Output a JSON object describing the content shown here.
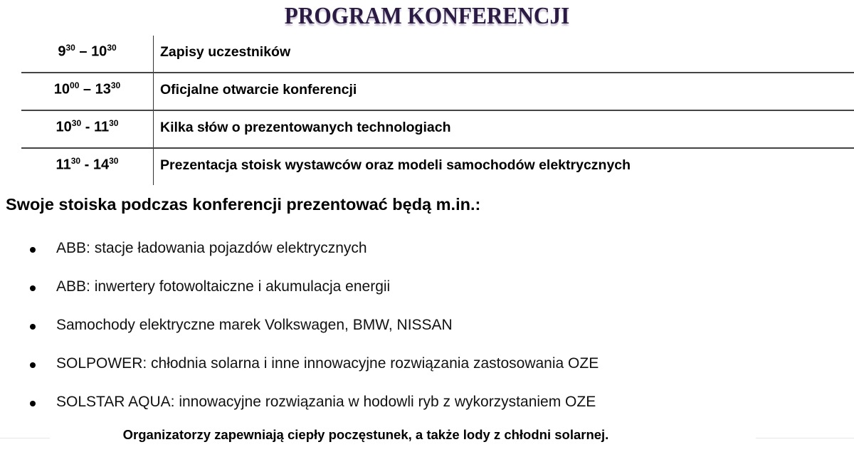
{
  "title": "PROGRAM KONFERENCJI",
  "schedule": [
    {
      "start_hour": "9",
      "start_min": "30",
      "sep": " – ",
      "end_hour": "10",
      "end_min": "30",
      "label": "Zapisy uczestników"
    },
    {
      "start_hour": "10",
      "start_min": "00",
      "sep": " – ",
      "end_hour": "13",
      "end_min": "30",
      "label": "Oficjalne otwarcie konferencji"
    },
    {
      "start_hour": "10",
      "start_min": "30",
      "sep": " - ",
      "end_hour": "11",
      "end_min": "30",
      "label": "Kilka słów o prezentowanych technologiach"
    },
    {
      "start_hour": "11",
      "start_min": "30",
      "sep": " - ",
      "end_hour": "14",
      "end_min": "30",
      "label": "Prezentacja stoisk wystawców oraz modeli samochodów elektrycznych"
    }
  ],
  "exhibitors_heading": "Swoje stoiska podczas konferencji prezentować będą m.in.:",
  "exhibitors": [
    "ABB: stacje ładowania pojazdów elektrycznych",
    "ABB: inwertery fotowoltaiczne i akumulacja energii",
    "Samochody elektryczne marek Volkswagen, BMW, NISSAN",
    "SOLPOWER:  chłodnia solarna i inne innowacyjne rozwiązania zastosowania OZE",
    "SOLSTAR AQUA: innowacyjne rozwiązania w hodowli ryb z wykorzystaniem OZE"
  ],
  "footer": "Organizatorzy zapewniają ciepły poczęstunek, a także lody z chłodni solarnej.",
  "colors": {
    "title": "#2b1b44"
  }
}
